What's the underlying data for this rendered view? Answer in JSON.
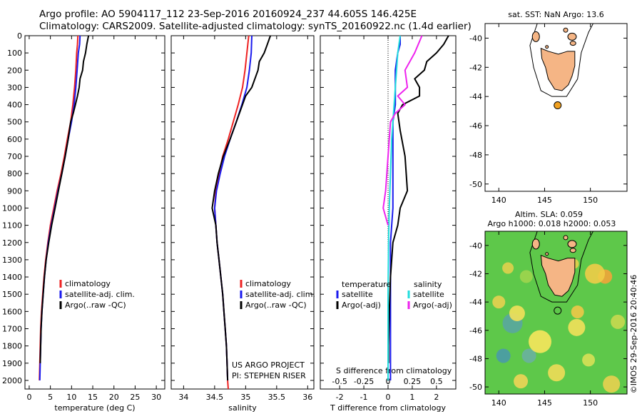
{
  "header": {
    "line1": "Argo profile: AO 5904117_112 23-Sep-2016 20160924_237 44.605S 146.425E",
    "line2": "Climatology: CARS2009. Satellite-adjusted climatology: synTS_20160922.nc (1.4d earlier)"
  },
  "colors": {
    "climatology": "#ee2222",
    "satellite": "#1a1aee",
    "argo": "#000000",
    "sal_satellite": "#22dddd",
    "sal_argo": "#ee22ee",
    "land": "#f5b585",
    "argo_marker": "#f0a020"
  },
  "depth_axis": {
    "range": [
      2050,
      0
    ],
    "ticks": [
      0,
      100,
      200,
      300,
      400,
      500,
      600,
      700,
      800,
      900,
      1000,
      1100,
      1200,
      1300,
      1400,
      1500,
      1600,
      1700,
      1800,
      1900,
      2000
    ]
  },
  "chart_data": [
    {
      "type": "line",
      "id": "temperature",
      "xlabel": "temperature (deg C)",
      "xlim": [
        -1,
        32
      ],
      "xticks": [
        0,
        5,
        10,
        15,
        20,
        25,
        30
      ],
      "legend": [
        "climatology",
        "satellite-adj. clim.",
        "Argo(..raw -QC)"
      ],
      "series": [
        {
          "name": "climatology",
          "color": "#ee2222",
          "points": [
            [
              11.5,
              0
            ],
            [
              11.4,
              50
            ],
            [
              11.2,
              100
            ],
            [
              11.0,
              200
            ],
            [
              10.7,
              300
            ],
            [
              10.3,
              400
            ],
            [
              9.8,
              500
            ],
            [
              9.0,
              600
            ],
            [
              8.3,
              700
            ],
            [
              7.5,
              800
            ],
            [
              6.6,
              900
            ],
            [
              5.8,
              1000
            ],
            [
              5.0,
              1100
            ],
            [
              4.4,
              1200
            ],
            [
              3.9,
              1300
            ],
            [
              3.5,
              1400
            ],
            [
              3.2,
              1500
            ],
            [
              2.9,
              1600
            ],
            [
              2.7,
              1700
            ],
            [
              2.6,
              1800
            ],
            [
              2.5,
              1900
            ],
            [
              2.4,
              2000
            ]
          ]
        },
        {
          "name": "satellite-adj. clim.",
          "color": "#1a1aee",
          "points": [
            [
              12.0,
              0
            ],
            [
              11.9,
              50
            ],
            [
              11.6,
              100
            ],
            [
              11.3,
              200
            ],
            [
              11.0,
              300
            ],
            [
              10.6,
              400
            ],
            [
              10.0,
              500
            ],
            [
              9.2,
              600
            ],
            [
              8.5,
              700
            ],
            [
              7.7,
              800
            ],
            [
              6.8,
              900
            ],
            [
              6.0,
              1000
            ],
            [
              5.2,
              1100
            ],
            [
              4.5,
              1200
            ],
            [
              4.0,
              1300
            ],
            [
              3.6,
              1400
            ],
            [
              3.3,
              1500
            ],
            [
              3.0,
              1600
            ],
            [
              2.8,
              1700
            ],
            [
              2.7,
              1800
            ],
            [
              2.6,
              1900
            ],
            [
              2.5,
              2000
            ]
          ]
        },
        {
          "name": "Argo(..raw -QC)",
          "color": "#000000",
          "points": [
            [
              14.0,
              0
            ],
            [
              13.6,
              50
            ],
            [
              13.3,
              100
            ],
            [
              12.8,
              150
            ],
            [
              12.6,
              200
            ],
            [
              12.0,
              250
            ],
            [
              11.8,
              300
            ],
            [
              11.4,
              350
            ],
            [
              10.9,
              400
            ],
            [
              10.4,
              450
            ],
            [
              9.8,
              500
            ],
            [
              9.2,
              600
            ],
            [
              8.5,
              700
            ],
            [
              7.7,
              800
            ],
            [
              6.9,
              900
            ],
            [
              6.1,
              1000
            ],
            [
              5.3,
              1100
            ],
            [
              4.6,
              1200
            ],
            [
              4.0,
              1300
            ],
            [
              3.6,
              1400
            ],
            [
              3.3,
              1500
            ],
            [
              3.0,
              1600
            ],
            [
              2.8,
              1700
            ],
            [
              2.7,
              1800
            ],
            [
              2.6,
              1900
            ]
          ]
        }
      ]
    },
    {
      "type": "line",
      "id": "salinity",
      "xlabel": "salinity",
      "xlim": [
        33.8,
        36.1
      ],
      "xticks": [
        34,
        34.5,
        35,
        35.5,
        36
      ],
      "legend": [
        "climatology",
        "satellite-adj. clim.",
        "Argo(..raw -QC)"
      ],
      "annotation": [
        "US ARGO PROJECT",
        "PI: STEPHEN RISER"
      ],
      "series": [
        {
          "name": "climatology",
          "color": "#ee2222",
          "points": [
            [
              35.05,
              0
            ],
            [
              35.02,
              100
            ],
            [
              34.99,
              200
            ],
            [
              34.95,
              300
            ],
            [
              34.88,
              400
            ],
            [
              34.8,
              500
            ],
            [
              34.72,
              600
            ],
            [
              34.63,
              700
            ],
            [
              34.57,
              800
            ],
            [
              34.52,
              900
            ],
            [
              34.5,
              1000
            ],
            [
              34.52,
              1100
            ],
            [
              34.54,
              1200
            ],
            [
              34.57,
              1300
            ],
            [
              34.6,
              1400
            ],
            [
              34.63,
              1500
            ],
            [
              34.65,
              1600
            ],
            [
              34.67,
              1700
            ],
            [
              34.69,
              1800
            ],
            [
              34.7,
              1900
            ],
            [
              34.71,
              2000
            ],
            [
              34.72,
              2050
            ]
          ]
        },
        {
          "name": "satellite-adj. clim.",
          "color": "#1a1aee",
          "points": [
            [
              35.1,
              0
            ],
            [
              35.09,
              100
            ],
            [
              35.06,
              200
            ],
            [
              35.02,
              300
            ],
            [
              34.94,
              400
            ],
            [
              34.85,
              500
            ],
            [
              34.75,
              600
            ],
            [
              34.66,
              700
            ],
            [
              34.59,
              800
            ],
            [
              34.53,
              900
            ],
            [
              34.5,
              1000
            ],
            [
              34.52,
              1100
            ],
            [
              34.54,
              1200
            ],
            [
              34.57,
              1300
            ],
            [
              34.6,
              1400
            ],
            [
              34.63,
              1500
            ],
            [
              34.65,
              1600
            ],
            [
              34.67,
              1700
            ],
            [
              34.69,
              1800
            ],
            [
              34.7,
              1900
            ],
            [
              34.71,
              2000
            ]
          ]
        },
        {
          "name": "Argo(..raw -QC)",
          "color": "#000000",
          "points": [
            [
              35.4,
              0
            ],
            [
              35.35,
              50
            ],
            [
              35.3,
              100
            ],
            [
              35.22,
              150
            ],
            [
              35.2,
              200
            ],
            [
              35.1,
              300
            ],
            [
              35.0,
              350
            ],
            [
              34.95,
              400
            ],
            [
              34.85,
              500
            ],
            [
              34.75,
              600
            ],
            [
              34.64,
              700
            ],
            [
              34.56,
              800
            ],
            [
              34.5,
              900
            ],
            [
              34.46,
              1000
            ],
            [
              34.49,
              1050
            ],
            [
              34.52,
              1100
            ],
            [
              34.54,
              1200
            ],
            [
              34.57,
              1300
            ],
            [
              34.6,
              1400
            ],
            [
              34.63,
              1500
            ],
            [
              34.65,
              1600
            ],
            [
              34.67,
              1700
            ],
            [
              34.69,
              1800
            ],
            [
              34.7,
              1900
            ],
            [
              34.71,
              2000
            ]
          ]
        }
      ]
    },
    {
      "type": "line",
      "id": "differences",
      "xlabel": "T difference from climatology",
      "xlabel_top": "S difference from climatology",
      "xlim": [
        -2.8,
        2.8
      ],
      "xticks": [
        -2,
        -1,
        0,
        1,
        2
      ],
      "s_xticks": [
        "-0.5",
        "-0.25",
        "0",
        "0.25",
        "0.5"
      ],
      "legend_t_title": "temperature",
      "legend_s_title": "salinity",
      "legend": [
        "satellite",
        "Argo(-adj)",
        "satellite",
        "Argo(-adj)"
      ],
      "series": [
        {
          "name": "T satellite",
          "color": "#1a1aee",
          "points": [
            [
              0.5,
              0
            ],
            [
              0.5,
              50
            ],
            [
              0.4,
              100
            ],
            [
              0.3,
              200
            ],
            [
              0.3,
              300
            ],
            [
              0.3,
              400
            ],
            [
              0.2,
              500
            ],
            [
              0.2,
              600
            ],
            [
              0.2,
              700
            ],
            [
              0.2,
              800
            ],
            [
              0.2,
              900
            ],
            [
              0.2,
              1000
            ],
            [
              0.1,
              1200
            ],
            [
              0.1,
              1500
            ],
            [
              0.1,
              2000
            ]
          ]
        },
        {
          "name": "T Argo(-adj)",
          "color": "#000000",
          "points": [
            [
              2.5,
              0
            ],
            [
              2.3,
              50
            ],
            [
              2.0,
              100
            ],
            [
              1.6,
              150
            ],
            [
              1.5,
              200
            ],
            [
              1.1,
              250
            ],
            [
              1.3,
              300
            ],
            [
              1.3,
              350
            ],
            [
              0.6,
              400
            ],
            [
              0.4,
              450
            ],
            [
              0.5,
              550
            ],
            [
              0.7,
              700
            ],
            [
              0.8,
              900
            ],
            [
              0.5,
              1000
            ],
            [
              0.4,
              1100
            ],
            [
              0.2,
              1200
            ],
            [
              0.1,
              1400
            ],
            [
              0.05,
              1600
            ],
            [
              0.02,
              1800
            ],
            [
              0.02,
              1900
            ]
          ]
        },
        {
          "name": "S satellite",
          "color": "#22dddd",
          "points": [
            [
              0.5,
              0
            ],
            [
              0.4,
              100
            ],
            [
              0.35,
              200
            ],
            [
              0.3,
              300
            ],
            [
              0.25,
              400
            ],
            [
              0.2,
              500
            ],
            [
              0.15,
              600
            ],
            [
              0.1,
              800
            ],
            [
              0.05,
              1000
            ],
            [
              0.02,
              1200
            ],
            [
              0.0,
              1500
            ],
            [
              0.0,
              2000
            ]
          ]
        },
        {
          "name": "S Argo(-adj)",
          "color": "#ee22ee",
          "points": [
            [
              1.4,
              0
            ],
            [
              1.1,
              100
            ],
            [
              0.7,
              200
            ],
            [
              0.8,
              300
            ],
            [
              0.4,
              350
            ],
            [
              0.7,
              400
            ],
            [
              0.3,
              450
            ],
            [
              0.1,
              500
            ],
            [
              0.0,
              700
            ],
            [
              -0.1,
              900
            ],
            [
              -0.2,
              1000
            ],
            [
              0.0,
              1100
            ]
          ]
        }
      ]
    },
    {
      "type": "heatmap",
      "id": "sst-map",
      "title": "sat. SST: NaN Argo: 13.6",
      "xticks": [
        140,
        145,
        150
      ],
      "yticks": [
        -40,
        -42,
        -44,
        -46,
        -48,
        -50
      ],
      "xlim": [
        138.5,
        154
      ],
      "ylim": [
        -50.5,
        -39
      ],
      "argo_position": [
        146.425,
        -44.605
      ]
    },
    {
      "type": "heatmap",
      "id": "sla-map",
      "title": "Altim. SLA: 0.059",
      "subtitle": "Argo h1000: 0.018 h2000: 0.053",
      "xticks": [
        140,
        145,
        150
      ],
      "yticks": [
        -40,
        -42,
        -44,
        -46,
        -48,
        -50
      ],
      "xlim": [
        138.5,
        154
      ],
      "ylim": [
        -50.5,
        -39
      ],
      "argo_position": [
        146.425,
        -44.605
      ],
      "side_label": "©IMOS 29-Sep-2016 20:40:46"
    }
  ]
}
